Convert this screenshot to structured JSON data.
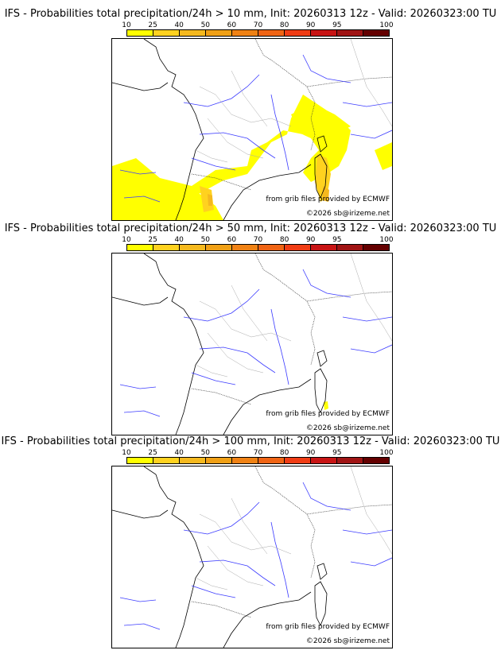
{
  "colors": {
    "scale": [
      "#ffff00",
      "#ffd21f",
      "#f5b91e",
      "#f0a015",
      "#f08214",
      "#f06414",
      "#f03c14",
      "#c81414",
      "#a01414",
      "#640000"
    ]
  },
  "legend_ticks": [
    "10",
    "25",
    "40",
    "50",
    "60",
    "70",
    "80",
    "90",
    "95",
    "100"
  ],
  "credits": {
    "source": "from grib files provided by ECMWF",
    "copyright": "©2026 sb@irizeme.net"
  },
  "panels": [
    {
      "title": "IFS - Probabilities total precipitation/24h > 10 mm, Init: 20260313 12z - Valid: 20260323:00 TU"
    },
    {
      "title": "IFS - Probabilities total precipitation/24h > 50 mm, Init: 20260313 12z - Valid: 20260323:00 TU"
    },
    {
      "title": "IFS - Probabilities total precipitation/24h > 100 mm, Init: 20260313 12z - Valid: 20260323:00 TU"
    }
  ]
}
